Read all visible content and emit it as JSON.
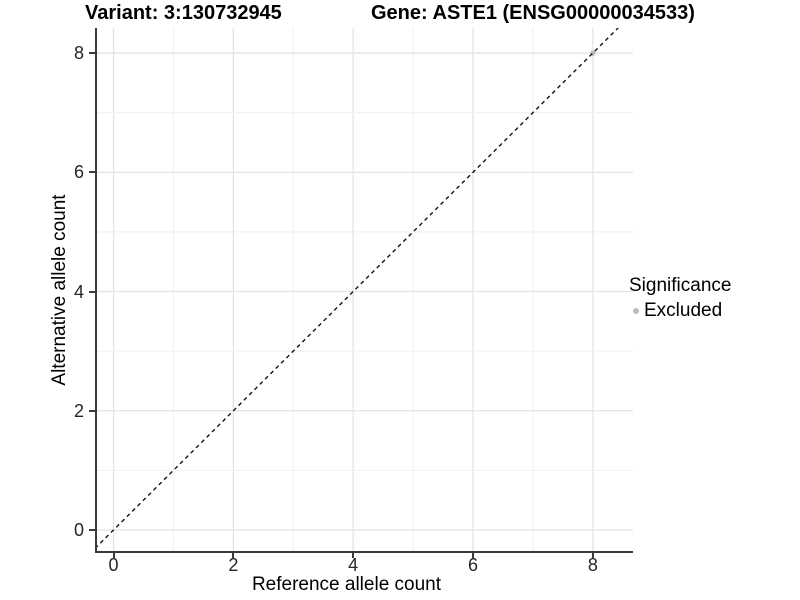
{
  "header": {
    "variant_title": "Variant: 3:130732945",
    "gene_title": "Gene: ASTE1 (ENSG00000034533)"
  },
  "axes": {
    "x_label": "Reference allele count",
    "y_label": "Alternative allele count"
  },
  "legend": {
    "title": "Significance",
    "items": [
      {
        "label": "Excluded",
        "color": "#bdbdbd"
      }
    ]
  },
  "chart_data": {
    "type": "scatter",
    "title": "Variant: 3:130732945    Gene: ASTE1 (ENSG00000034533)",
    "xlabel": "Reference allele count",
    "ylabel": "Alternative allele count",
    "xlim": [
      -0.309,
      8.67
    ],
    "ylim": [
      -0.386,
      8.42
    ],
    "x_ticks": [
      0,
      2,
      4,
      6,
      8
    ],
    "y_ticks": [
      0,
      2,
      4,
      6,
      8
    ],
    "minor_grid_step": 1,
    "grid": true,
    "legend_position": "right",
    "series": [
      {
        "name": "Excluded",
        "color": "#bdbdbd",
        "points": [
          {
            "x": 8,
            "y": 8
          }
        ]
      }
    ],
    "reference_line": {
      "slope": 1,
      "intercept": 0,
      "style": "dashed",
      "color": "#141414"
    },
    "point_radius": 2.7,
    "grid_major_color": "#e4e4e4",
    "grid_minor_color": "#f1f1f1",
    "axis_line_color": "#3a3a3a"
  }
}
